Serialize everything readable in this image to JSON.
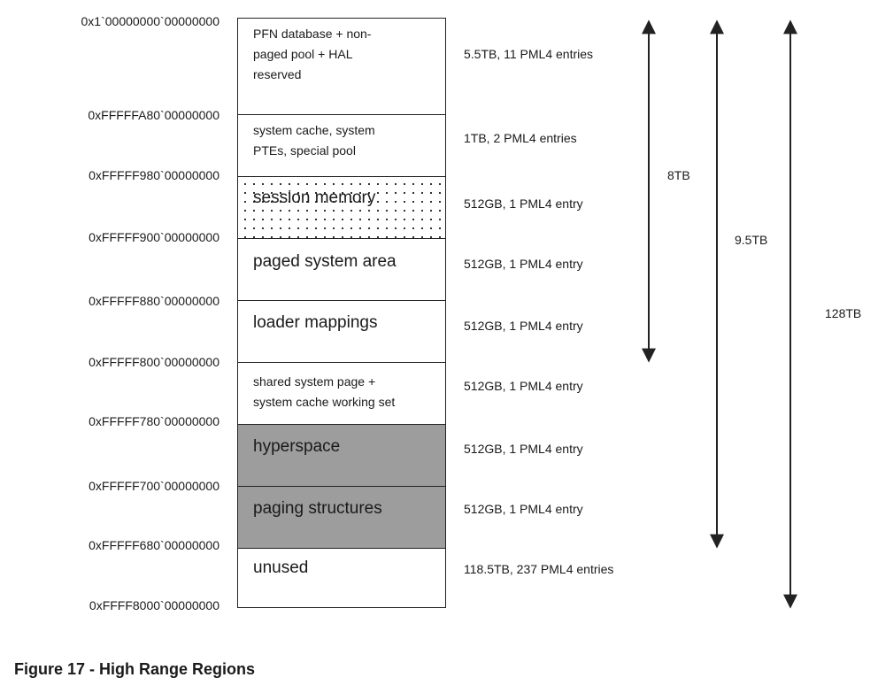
{
  "regions": [
    {
      "address": "0x1`00000000`00000000",
      "label": "PFN database + non-\npaged pool + HAL\nreserved",
      "size": "5.5TB, 11 PML4 entries",
      "fill": "white"
    },
    {
      "address": "0xFFFFFA80`00000000",
      "label": "system cache, system\nPTEs, special pool",
      "size": "1TB, 2 PML4 entries",
      "fill": "white"
    },
    {
      "address": "0xFFFFF980`00000000",
      "label": "session memory",
      "size": "512GB, 1 PML4 entry",
      "fill": "dotted"
    },
    {
      "address": "0xFFFFF900`00000000",
      "label": "paged system area",
      "size": "512GB, 1 PML4 entry",
      "fill": "white"
    },
    {
      "address": "0xFFFFF880`00000000",
      "label": "loader mappings",
      "size": "512GB, 1 PML4 entry",
      "fill": "white"
    },
    {
      "address": "0xFFFFF800`00000000",
      "label": "shared system page +\nsystem cache working set",
      "size": "512GB, 1 PML4 entry",
      "fill": "white"
    },
    {
      "address": "0xFFFFF780`00000000",
      "label": "hyperspace",
      "size": "512GB, 1 PML4 entry",
      "fill": "grey"
    },
    {
      "address": "0xFFFFF700`00000000",
      "label": "paging structures",
      "size": "512GB, 1 PML4 entry",
      "fill": "grey"
    },
    {
      "address": "0xFFFFF680`00000000",
      "label": "unused",
      "size": "118.5TB, 237 PML4 entries",
      "fill": "white"
    }
  ],
  "bottom_address": "0xFFFF8000`00000000",
  "spans": [
    {
      "label": "8TB",
      "from_region": 0,
      "to_region": 4
    },
    {
      "label": "9.5TB",
      "from_region": 0,
      "to_region": 7
    },
    {
      "label": "128TB",
      "from_region": 0,
      "to_region": 8
    }
  ],
  "colors": {
    "grey_fill": "#9d9d9d",
    "line": "#222222"
  },
  "caption": "Figure 17 - High Range Regions"
}
